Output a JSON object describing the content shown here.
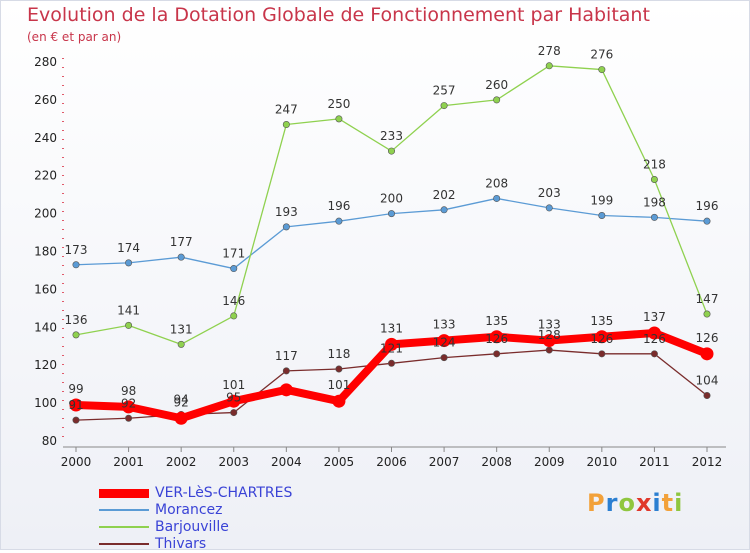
{
  "title": "Evolution de la Dotation Globale de Fonctionnement par Habitant",
  "subtitle": "(en € et par an)",
  "logo": {
    "text": "Proxiti",
    "colors": [
      "#f2a13a",
      "#2b7fd1",
      "#8fc63f",
      "#e0382b",
      "#2b7fd1",
      "#f2a13a",
      "#8fc63f"
    ]
  },
  "chart_data": {
    "type": "line",
    "title": "Evolution de la Dotation Globale de Fonctionnement par Habitant",
    "ylabel": "(en € et par an)",
    "xlabel": "",
    "ylim": [
      80,
      280
    ],
    "yticks": [
      80,
      100,
      120,
      140,
      160,
      180,
      200,
      220,
      240,
      260,
      280
    ],
    "categories": [
      "2000",
      "2001",
      "2002",
      "2003",
      "2004",
      "2005",
      "2006",
      "2007",
      "2008",
      "2009",
      "2010",
      "2011",
      "2012"
    ],
    "grid": false,
    "legend": "bottom-left",
    "series": [
      {
        "name": "VER-LèS-CHARTRES",
        "color": "#ff0000",
        "values": [
          99,
          98,
          92,
          101,
          107,
          101,
          131,
          133,
          135,
          133,
          135,
          137,
          126
        ],
        "labels": [
          "99",
          "98",
          "92",
          "101",
          "",
          "101",
          "131",
          "133",
          "135",
          "133",
          "135",
          "137",
          "126"
        ],
        "labelOffsets": [
          -12,
          -12,
          -12,
          -12,
          0,
          -12,
          -12,
          -12,
          -12,
          -12,
          -12,
          -12,
          -12
        ],
        "emphasis": true
      },
      {
        "name": "Morancez",
        "color": "#5b9bd5",
        "values": [
          173,
          174,
          177,
          171,
          193,
          196,
          200,
          202,
          208,
          203,
          199,
          198,
          196
        ],
        "labels": [
          "173",
          "174",
          "177",
          "171",
          "193",
          "196",
          "200",
          "202",
          "208",
          "203",
          "199",
          "198",
          "196"
        ],
        "labelOffsets": [
          -11,
          -11,
          -11,
          -11,
          -11,
          -11,
          -11,
          -11,
          -11,
          -11,
          -11,
          -11,
          -11
        ]
      },
      {
        "name": "Barjouville",
        "color": "#8fd14f",
        "values": [
          136,
          141,
          131,
          146,
          247,
          250,
          233,
          257,
          260,
          278,
          276,
          218,
          147
        ],
        "labels": [
          "136",
          "141",
          "131",
          "146",
          "247",
          "250",
          "233",
          "257",
          "260",
          "278",
          "276",
          "218",
          "147"
        ],
        "labelOffsets": [
          -11,
          -11,
          -11,
          -11,
          -11,
          -11,
          -11,
          -11,
          -11,
          -11,
          -11,
          -11,
          -11
        ]
      },
      {
        "name": "Thivars",
        "color": "#7a2c2c",
        "values": [
          91,
          92,
          94,
          95,
          117,
          118,
          121,
          124,
          126,
          128,
          126,
          126,
          104
        ],
        "labels": [
          "91",
          "92",
          "94",
          "95",
          "117",
          "118",
          "121",
          "124",
          "126",
          "128",
          "126",
          "126",
          "104"
        ],
        "labelOffsets": [
          -11,
          -11,
          -11,
          -11,
          -11,
          -11,
          -11,
          -11,
          -11,
          -11,
          -11,
          -11,
          -11
        ]
      }
    ]
  }
}
